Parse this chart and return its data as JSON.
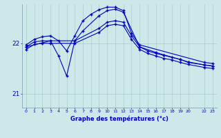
{
  "xlabel": "Graphe des températures (°c)",
  "line_color": "#0000bb",
  "bg_color": "#cce8e8",
  "grid_color": "#aacccc",
  "xlim": [
    -0.5,
    23.5
  ],
  "ylim": [
    20.72,
    22.78
  ],
  "yticks": [
    21.0,
    22.0
  ],
  "xtick_positions": [
    0,
    1,
    2,
    3,
    4,
    5,
    6,
    7,
    8,
    9,
    10,
    11,
    12,
    13,
    14,
    15,
    16,
    17,
    18,
    19,
    20,
    22,
    23
  ],
  "xtick_labels": [
    "0",
    "1",
    "2",
    "3",
    "4",
    "5",
    "6",
    "7",
    "8",
    "9",
    "10",
    "11",
    "12",
    "13",
    "14",
    "15",
    "16",
    "17",
    "18",
    "19",
    "20",
    "22",
    "23"
  ],
  "series": [
    {
      "x": [
        0,
        1,
        2,
        3,
        4,
        5,
        6,
        7,
        8,
        9,
        10,
        11,
        12,
        13,
        14,
        22,
        23
      ],
      "y": [
        21.97,
        22.08,
        22.13,
        22.15,
        22.05,
        21.85,
        22.15,
        22.45,
        22.58,
        22.67,
        22.72,
        22.72,
        22.65,
        22.2,
        21.97,
        21.62,
        21.6
      ]
    },
    {
      "x": [
        0,
        3,
        4,
        5,
        6,
        7,
        9,
        10,
        11,
        12,
        14,
        16,
        17,
        19,
        20,
        22,
        23
      ],
      "y": [
        21.93,
        22.05,
        21.75,
        21.35,
        22.05,
        22.25,
        22.55,
        22.65,
        22.68,
        22.62,
        21.93,
        21.82,
        21.77,
        21.68,
        21.62,
        21.57,
        21.55
      ]
    },
    {
      "x": [
        0,
        1,
        2,
        3,
        6,
        9,
        10,
        11,
        12,
        13,
        14,
        15,
        16,
        17,
        18,
        19,
        20,
        22,
        23
      ],
      "y": [
        21.93,
        22.03,
        22.05,
        22.05,
        22.05,
        22.3,
        22.42,
        22.45,
        22.42,
        22.15,
        21.93,
        21.85,
        21.8,
        21.76,
        21.72,
        21.68,
        21.63,
        21.57,
        21.55
      ]
    },
    {
      "x": [
        0,
        1,
        2,
        3,
        6,
        9,
        10,
        11,
        12,
        13,
        14,
        15,
        16,
        17,
        18,
        19,
        20,
        22,
        23
      ],
      "y": [
        21.88,
        21.98,
        22.0,
        22.0,
        22.0,
        22.22,
        22.35,
        22.38,
        22.35,
        22.08,
        21.88,
        21.8,
        21.75,
        21.7,
        21.67,
        21.62,
        21.58,
        21.52,
        21.5
      ]
    }
  ]
}
